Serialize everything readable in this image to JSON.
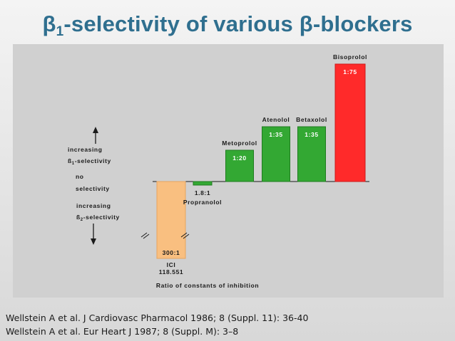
{
  "slide": {
    "title_prefix": "β",
    "title_sub": "1",
    "title_rest": "-selectivity of various β-blockers",
    "references": [
      "Wellstein A et al. J Cardiovasc Pharmacol 1986; 8 (Suppl. 11): 36-40",
      "Wellstein A et al. Eur Heart J 1987; 8 (Suppl. M): 3–8"
    ]
  },
  "chart_data": {
    "type": "bar",
    "title": "",
    "xlabel": "Ratio of constants of inhibition",
    "ylabel": "",
    "grid": false,
    "legend": "none",
    "scale_break": true,
    "categories": [
      "ICI 118.551",
      "Propranolol",
      "Metoprolol",
      "Atenolol",
      "Betaxolol",
      "Bisoprolol"
    ],
    "bars": [
      {
        "name_lines": [
          "ICI",
          "118.551"
        ],
        "label": "300:1",
        "value": -300,
        "color": "#f9bf80",
        "stroke": "#e7a45e"
      },
      {
        "name_lines": [
          "Propranolol"
        ],
        "label": "1.8:1",
        "value": -1.8,
        "color": "#33a833",
        "stroke": "#1f7d1f"
      },
      {
        "name_lines": [
          "Metoprolol"
        ],
        "label": "1:20",
        "value": 20,
        "color": "#33a833",
        "stroke": "#1f7d1f"
      },
      {
        "name_lines": [
          "Atenolol"
        ],
        "label": "1:35",
        "value": 35,
        "color": "#33a833",
        "stroke": "#1f7d1f"
      },
      {
        "name_lines": [
          "Betaxolol"
        ],
        "label": "1:35",
        "value": 35,
        "color": "#33a833",
        "stroke": "#1f7d1f"
      },
      {
        "name_lines": [
          "Bisoprolol"
        ],
        "label": "1:75",
        "value": 75,
        "color": "#ff2a2a",
        "stroke": "#cc1a1a"
      }
    ],
    "annotations": {
      "up_line1": "increasing",
      "up_line2_prefix": "ß",
      "up_line2_sub": "1",
      "up_line2_rest": "-selectivity",
      "neutral_line1": "no",
      "neutral_line2": "selectivity",
      "down_line1": "increasing",
      "down_line2_prefix": "ß",
      "down_line2_sub": "2",
      "down_line2_rest": "-selectivity"
    }
  }
}
